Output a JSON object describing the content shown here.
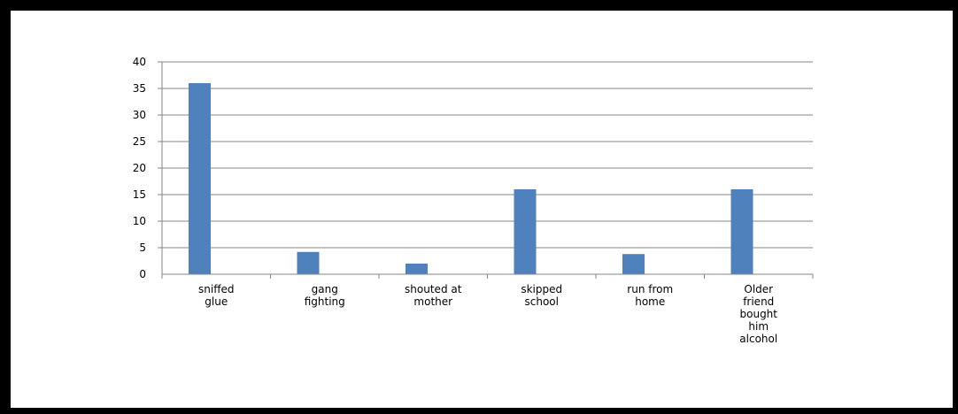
{
  "chart_data": {
    "type": "bar",
    "title": "",
    "xlabel": "",
    "ylabel": "",
    "categories": [
      [
        "sniffed",
        "glue"
      ],
      [
        "gang",
        "fighting"
      ],
      [
        "shouted at",
        "mother"
      ],
      [
        "skipped",
        "school"
      ],
      [
        "run from",
        "home"
      ],
      [
        "Older",
        "friend",
        "bought",
        "him",
        "alcohol"
      ]
    ],
    "values": [
      36,
      4.2,
      2,
      16,
      3.8,
      16
    ],
    "ylim": [
      0,
      40
    ],
    "yticks": [
      0,
      5,
      10,
      15,
      20,
      25,
      30,
      35,
      40
    ],
    "grid": true,
    "legend": "none",
    "bar_color": "#4F81BD",
    "grid_color": "#868686"
  }
}
